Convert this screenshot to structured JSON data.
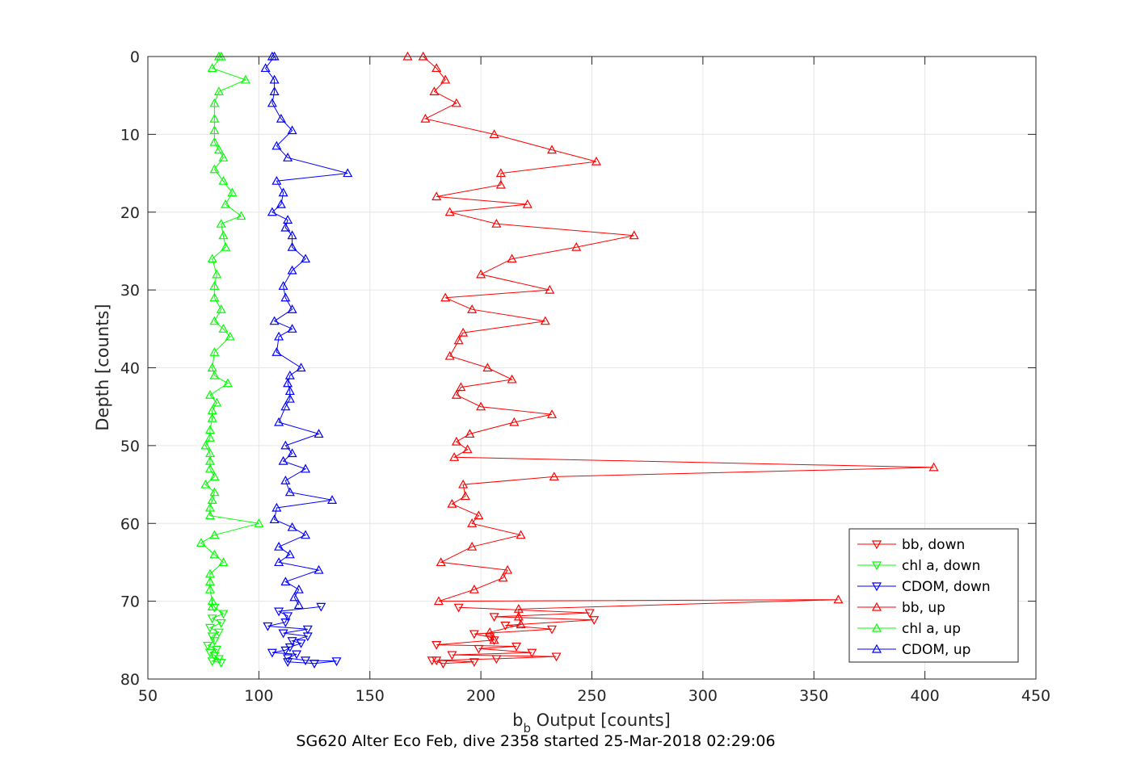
{
  "chart_data": {
    "type": "line",
    "title": "",
    "caption": "SG620 Alter Eco Feb, dive 2358 started 25-Mar-2018 02:29:06",
    "xlabel_main": "b",
    "xlabel_sub": "b",
    "xlabel_rest": " Output [counts]",
    "ylabel": "Depth [counts]",
    "xlim": [
      50,
      450
    ],
    "ylim": [
      0,
      80
    ],
    "y_reversed": true,
    "grid": true,
    "legend_position": "bottom-right",
    "xticks": [
      "50",
      "100",
      "150",
      "200",
      "250",
      "300",
      "350",
      "400",
      "450"
    ],
    "yticks": [
      "0",
      "10",
      "20",
      "30",
      "40",
      "50",
      "60",
      "70",
      "80"
    ],
    "series": [
      {
        "name": "bb, down",
        "color": "#ff0000",
        "marker": "triangle-down",
        "points": [
          [
            190,
            70.8
          ],
          [
            249,
            71.5
          ],
          [
            206,
            72.0
          ],
          [
            251,
            72.4
          ],
          [
            211,
            73.1
          ],
          [
            232,
            73.6
          ],
          [
            197,
            74.2
          ],
          [
            204,
            74.6
          ],
          [
            206,
            75.0
          ],
          [
            180,
            75.6
          ],
          [
            216,
            75.8
          ],
          [
            199,
            76.1
          ],
          [
            223,
            76.6
          ],
          [
            187,
            76.9
          ],
          [
            234,
            77.1
          ],
          [
            207,
            77.4
          ],
          [
            180,
            77.6
          ],
          [
            197,
            77.8
          ],
          [
            183,
            78.0
          ],
          [
            178,
            77.6
          ]
        ]
      },
      {
        "name": "chl a, down",
        "color": "#00ff00",
        "marker": "triangle-down",
        "points": [
          [
            80,
            70.8
          ],
          [
            84,
            71.6
          ],
          [
            79,
            72.2
          ],
          [
            83,
            72.8
          ],
          [
            78,
            73.4
          ],
          [
            82,
            74.0
          ],
          [
            79,
            74.5
          ],
          [
            80,
            75.1
          ],
          [
            77,
            75.7
          ],
          [
            81,
            76.2
          ],
          [
            78,
            76.6
          ],
          [
            80,
            77.0
          ],
          [
            82,
            77.4
          ],
          [
            79,
            77.7
          ],
          [
            83,
            77.9
          ]
        ]
      },
      {
        "name": "CDOM, down",
        "color": "#0000ff",
        "marker": "triangle-down",
        "points": [
          [
            128,
            70.7
          ],
          [
            109,
            71.3
          ],
          [
            113,
            71.9
          ],
          [
            112,
            72.7
          ],
          [
            104,
            73.2
          ],
          [
            122,
            73.6
          ],
          [
            111,
            74.1
          ],
          [
            122,
            74.5
          ],
          [
            115,
            75.1
          ],
          [
            119,
            75.4
          ],
          [
            114,
            75.9
          ],
          [
            112,
            76.3
          ],
          [
            106,
            76.6
          ],
          [
            117,
            76.8
          ],
          [
            113,
            77.3
          ],
          [
            121,
            77.6
          ],
          [
            135,
            77.7
          ],
          [
            125,
            78.0
          ],
          [
            113,
            77.8
          ]
        ]
      },
      {
        "name": "bb, up",
        "color": "#ff0000",
        "marker": "triangle-up",
        "points": [
          [
            167,
            0
          ],
          [
            174,
            0
          ],
          [
            180,
            1.5
          ],
          [
            184,
            3
          ],
          [
            179,
            4.5
          ],
          [
            189,
            6
          ],
          [
            175,
            8
          ],
          [
            206,
            10
          ],
          [
            232,
            12
          ],
          [
            252,
            13.5
          ],
          [
            209,
            15
          ],
          [
            209,
            16.5
          ],
          [
            180,
            18
          ],
          [
            221,
            19
          ],
          [
            186,
            20
          ],
          [
            207,
            21.5
          ],
          [
            269,
            23
          ],
          [
            243,
            24.5
          ],
          [
            214,
            26
          ],
          [
            200,
            28
          ],
          [
            231,
            30
          ],
          [
            184,
            31
          ],
          [
            196,
            32.5
          ],
          [
            229,
            34
          ],
          [
            192,
            35.5
          ],
          [
            190,
            36.5
          ],
          [
            186,
            38.5
          ],
          [
            203,
            40
          ],
          [
            214,
            41.5
          ],
          [
            191,
            42.5
          ],
          [
            189,
            43.5
          ],
          [
            200,
            45
          ],
          [
            232,
            46
          ],
          [
            215,
            47
          ],
          [
            195,
            48.5
          ],
          [
            189,
            49.5
          ],
          [
            194,
            50.5
          ],
          [
            188,
            51.5
          ],
          [
            404,
            52.8
          ],
          [
            233,
            54
          ],
          [
            192,
            55
          ],
          [
            193,
            56.5
          ],
          [
            187,
            57.5
          ],
          [
            199,
            59
          ],
          [
            196,
            60
          ],
          [
            218,
            61.5
          ],
          [
            196,
            63
          ],
          [
            182,
            65
          ],
          [
            212,
            66
          ],
          [
            210,
            67
          ],
          [
            197,
            68.5
          ],
          [
            181,
            70
          ],
          [
            361,
            69.8
          ],
          [
            217,
            71
          ],
          [
            217,
            72
          ],
          [
            218,
            73
          ],
          [
            204,
            74
          ],
          [
            206,
            75
          ]
        ]
      },
      {
        "name": "chl a, up",
        "color": "#00ff00",
        "marker": "triangle-up",
        "points": [
          [
            82,
            0
          ],
          [
            83,
            0
          ],
          [
            79,
            1.5
          ],
          [
            94,
            3
          ],
          [
            82,
            4.5
          ],
          [
            80,
            6
          ],
          [
            80,
            8
          ],
          [
            80,
            9.5
          ],
          [
            80,
            11
          ],
          [
            82,
            12
          ],
          [
            84,
            13
          ],
          [
            80,
            14.5
          ],
          [
            84,
            16
          ],
          [
            88,
            17.5
          ],
          [
            85,
            19
          ],
          [
            92,
            20.5
          ],
          [
            83,
            21.5
          ],
          [
            84,
            23
          ],
          [
            85,
            24.5
          ],
          [
            79,
            26
          ],
          [
            81,
            28
          ],
          [
            80,
            29.5
          ],
          [
            80,
            31
          ],
          [
            83,
            32.5
          ],
          [
            80,
            34
          ],
          [
            84,
            35
          ],
          [
            87,
            36
          ],
          [
            80,
            38
          ],
          [
            79,
            40
          ],
          [
            80,
            41
          ],
          [
            86,
            42
          ],
          [
            78,
            43.5
          ],
          [
            81,
            44.5
          ],
          [
            79,
            45.5
          ],
          [
            79,
            46.5
          ],
          [
            78,
            48
          ],
          [
            78,
            49
          ],
          [
            76,
            50
          ],
          [
            78,
            51
          ],
          [
            78,
            52
          ],
          [
            78,
            53
          ],
          [
            80,
            54
          ],
          [
            76,
            55
          ],
          [
            80,
            56
          ],
          [
            79,
            57
          ],
          [
            78,
            58
          ],
          [
            78,
            59
          ],
          [
            100,
            60
          ],
          [
            80,
            61.5
          ],
          [
            74,
            62.5
          ],
          [
            80,
            64
          ],
          [
            84,
            65
          ],
          [
            78,
            66.5
          ],
          [
            78,
            67.5
          ],
          [
            78,
            68.5
          ],
          [
            79,
            70
          ],
          [
            79,
            70.7
          ]
        ]
      },
      {
        "name": "CDOM, up",
        "color": "#0000ff",
        "marker": "triangle-up",
        "points": [
          [
            106,
            0
          ],
          [
            107,
            0
          ],
          [
            103,
            1.5
          ],
          [
            107,
            3
          ],
          [
            107,
            4.5
          ],
          [
            106,
            6
          ],
          [
            110,
            8
          ],
          [
            115,
            9.5
          ],
          [
            108,
            11.5
          ],
          [
            113,
            13
          ],
          [
            140,
            15
          ],
          [
            108,
            16
          ],
          [
            111,
            17.5
          ],
          [
            110,
            19
          ],
          [
            106,
            20
          ],
          [
            113,
            21
          ],
          [
            112,
            22
          ],
          [
            115,
            23
          ],
          [
            115,
            24.5
          ],
          [
            121,
            26
          ],
          [
            115,
            27.5
          ],
          [
            111,
            29.5
          ],
          [
            112,
            31
          ],
          [
            115,
            32.5
          ],
          [
            107,
            34
          ],
          [
            115,
            35
          ],
          [
            109,
            36
          ],
          [
            108,
            38
          ],
          [
            119,
            40
          ],
          [
            114,
            41
          ],
          [
            113,
            42
          ],
          [
            114,
            43
          ],
          [
            114,
            44
          ],
          [
            112,
            45
          ],
          [
            109,
            47
          ],
          [
            127,
            48.5
          ],
          [
            112,
            50
          ],
          [
            115,
            51
          ],
          [
            111,
            52
          ],
          [
            121,
            53
          ],
          [
            112,
            54.5
          ],
          [
            114,
            56
          ],
          [
            133,
            57
          ],
          [
            108,
            58
          ],
          [
            107,
            59.5
          ],
          [
            115,
            60.5
          ],
          [
            121,
            61.5
          ],
          [
            109,
            63
          ],
          [
            114,
            64
          ],
          [
            109,
            65
          ],
          [
            127,
            66
          ],
          [
            112,
            67.5
          ],
          [
            118,
            68.5
          ],
          [
            116,
            69.5
          ],
          [
            118,
            70.5
          ]
        ]
      }
    ]
  }
}
